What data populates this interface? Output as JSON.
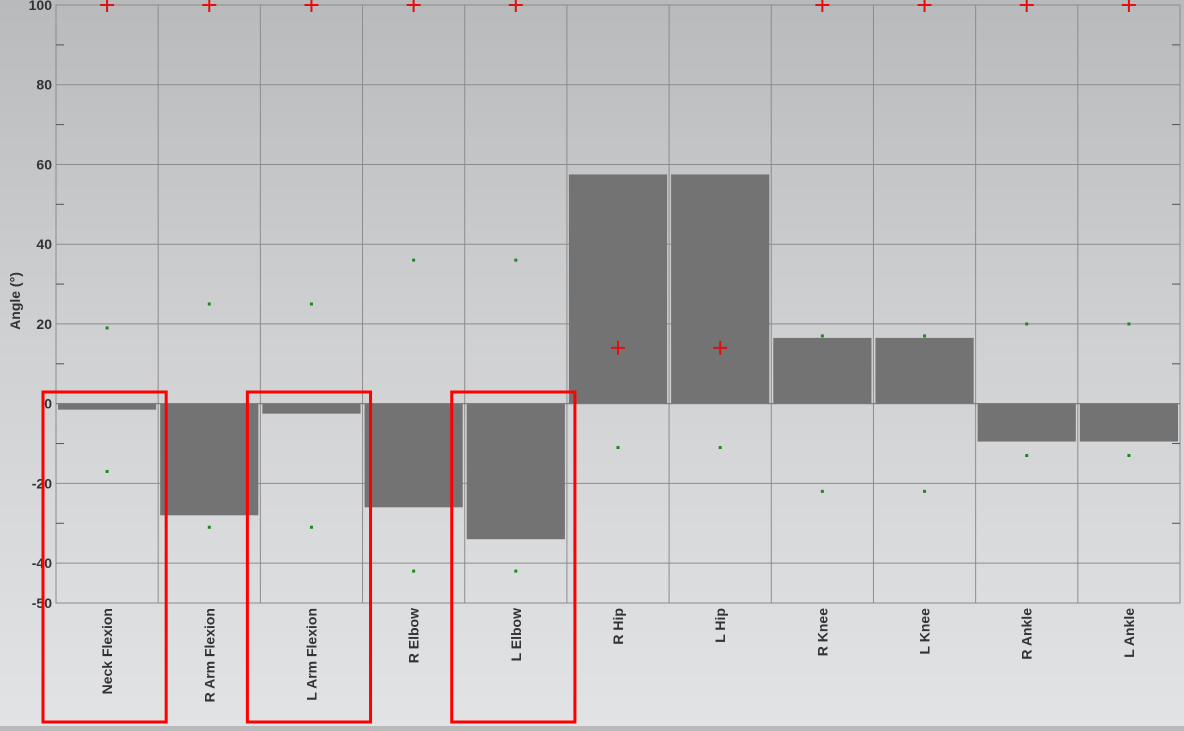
{
  "chart_data": {
    "type": "bar",
    "ylabel": "Angle (°)",
    "xlabel": "",
    "ylim": [
      -50,
      100
    ],
    "yticks": [
      100,
      80,
      60,
      40,
      20,
      0,
      -20,
      -40,
      -50
    ],
    "categories": [
      "Neck Flexion",
      "R Arm Flexion",
      "L Arm Flexion",
      "R Elbow",
      "L Elbow",
      "R Hip",
      "L Hip",
      "R Knee",
      "L Knee",
      "R Ankle",
      "L Ankle"
    ],
    "values": [
      -1.5,
      -28,
      -2.5,
      -26,
      -34,
      57.5,
      57.5,
      16.5,
      16.5,
      -9.5,
      -9.5
    ],
    "upper_limit_markers": [
      100,
      100,
      100,
      100,
      100,
      null,
      null,
      100,
      100,
      100,
      100
    ],
    "lower_limit_markers": [
      null,
      null,
      null,
      null,
      null,
      14,
      14,
      null,
      null,
      null,
      null
    ],
    "green_upper": [
      19,
      25,
      25,
      36,
      36,
      -11,
      -11,
      17,
      17,
      20,
      20
    ],
    "green_lower": [
      -17,
      -31,
      -31,
      -42,
      -42,
      null,
      null,
      -22,
      -22,
      -13,
      -13
    ],
    "highlighted_categories": [
      "Neck Flexion",
      "L Arm Flexion",
      "L Elbow"
    ],
    "grid": true,
    "colors": {
      "bar": "#737373",
      "grid": "#8c8c8c",
      "marker": "#e01010",
      "green_dot": "#1a8a1a",
      "highlight": "#ff0000",
      "text": "#333333"
    }
  }
}
